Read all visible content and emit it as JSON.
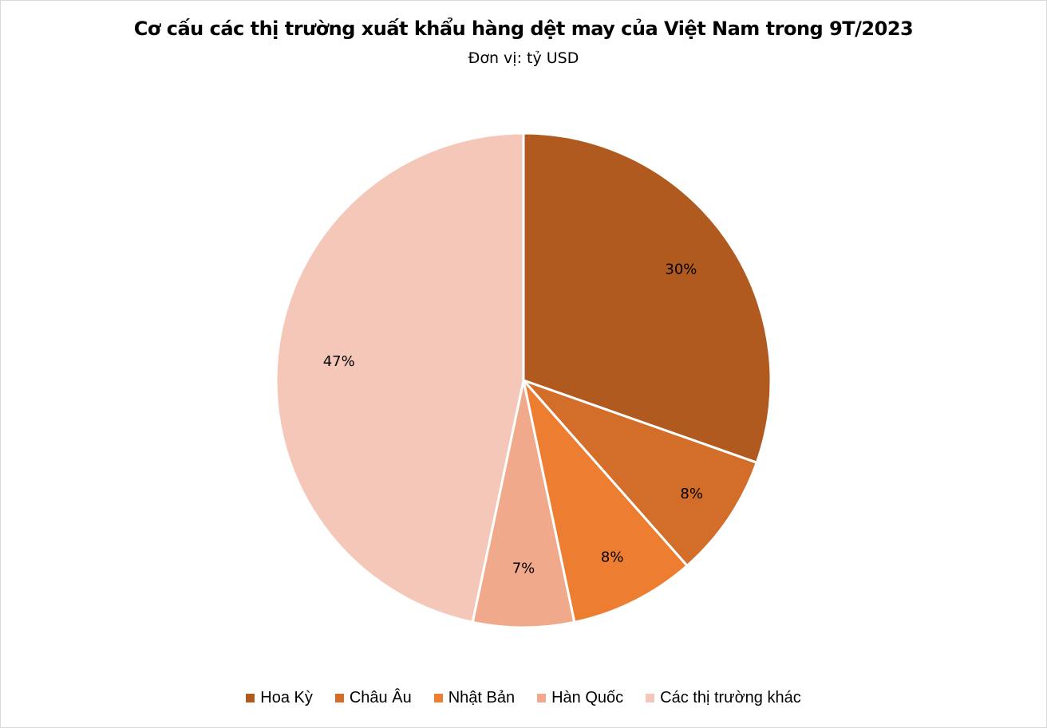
{
  "header": {
    "title": "Cơ cấu các thị trường xuất khẩu hàng dệt may của Việt Nam trong 9T/2023",
    "subtitle": "Đơn vị: tỷ USD"
  },
  "legend": [
    {
      "label": "Hoa Kỳ",
      "color": "#B05A20"
    },
    {
      "label": "Châu Âu",
      "color": "#D36E2A"
    },
    {
      "label": "Nhật Bản",
      "color": "#ED7D31"
    },
    {
      "label": "Hàn Quốc",
      "color": "#F0A98A"
    },
    {
      "label": "Các thị trường khác",
      "color": "#F4C7B8"
    }
  ],
  "chart_data": {
    "type": "pie",
    "title": "Cơ cấu các thị trường xuất khẩu hàng dệt may của Việt Nam trong 9T/2023",
    "subtitle": "Đơn vị: tỷ USD",
    "categories": [
      "Hoa Kỳ",
      "Châu Âu",
      "Nhật Bản",
      "Hàn Quốc",
      "Các thị trường khác"
    ],
    "values": [
      30.4,
      8.1,
      8.2,
      6.6,
      46.7
    ],
    "data_labels": [
      "30%",
      "8%",
      "8%",
      "7%",
      "47%"
    ],
    "colors": [
      "#B05A20",
      "#D36E2A",
      "#ED7D31",
      "#F0A98A",
      "#F4C7B8"
    ],
    "start_angle_deg": 0,
    "direction": "clockwise",
    "legend_position": "bottom"
  }
}
